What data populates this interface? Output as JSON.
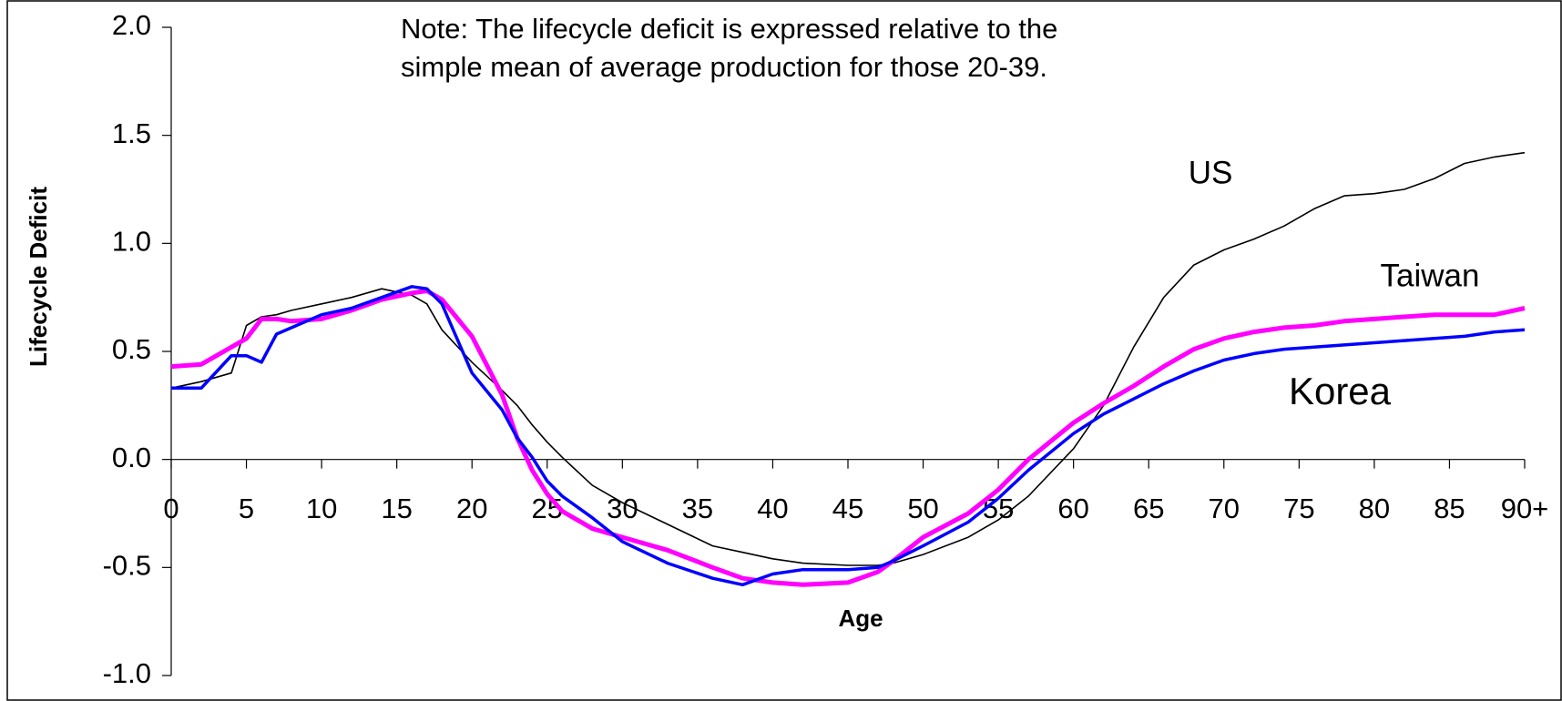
{
  "chart_data": {
    "type": "line",
    "note": [
      "Note: The lifecycle deficit is expressed relative to the",
      "simple mean of average production for those 20-39."
    ],
    "xlabel": "Age",
    "ylabel": "Lifecycle Deficit",
    "x": [
      0,
      2,
      4,
      5,
      6,
      7,
      8,
      10,
      12,
      14,
      16,
      17,
      18,
      20,
      22,
      23,
      24,
      25,
      26,
      28,
      30,
      33,
      36,
      38,
      40,
      42,
      45,
      47,
      48,
      50,
      53,
      55,
      57,
      60,
      62,
      64,
      66,
      68,
      70,
      72,
      74,
      76,
      78,
      80,
      82,
      84,
      86,
      88,
      90
    ],
    "series": [
      {
        "name": "US",
        "color": "#000000",
        "values": [
          0.33,
          0.36,
          0.4,
          0.62,
          0.66,
          0.67,
          0.69,
          0.72,
          0.75,
          0.79,
          0.76,
          0.72,
          0.6,
          0.45,
          0.32,
          0.25,
          0.16,
          0.08,
          0.01,
          -0.12,
          -0.2,
          -0.3,
          -0.4,
          -0.43,
          -0.46,
          -0.48,
          -0.49,
          -0.49,
          -0.48,
          -0.44,
          -0.36,
          -0.28,
          -0.17,
          0.05,
          0.25,
          0.52,
          0.75,
          0.9,
          0.97,
          1.02,
          1.08,
          1.16,
          1.22,
          1.23,
          1.25,
          1.3,
          1.37,
          1.4,
          1.42
        ]
      },
      {
        "name": "Taiwan",
        "color": "#FF00FF",
        "values": [
          0.43,
          0.44,
          0.52,
          0.56,
          0.65,
          0.65,
          0.64,
          0.65,
          0.69,
          0.74,
          0.77,
          0.78,
          0.74,
          0.57,
          0.3,
          0.1,
          -0.05,
          -0.16,
          -0.24,
          -0.32,
          -0.36,
          -0.42,
          -0.5,
          -0.55,
          -0.57,
          -0.58,
          -0.57,
          -0.52,
          -0.47,
          -0.36,
          -0.25,
          -0.14,
          0.0,
          0.17,
          0.26,
          0.34,
          0.43,
          0.51,
          0.56,
          0.59,
          0.61,
          0.62,
          0.64,
          0.65,
          0.66,
          0.67,
          0.67,
          0.67,
          0.7
        ]
      },
      {
        "name": "Korea",
        "color": "#0000FF",
        "values": [
          0.33,
          0.33,
          0.48,
          0.48,
          0.45,
          0.58,
          0.61,
          0.67,
          0.7,
          0.75,
          0.8,
          0.79,
          0.72,
          0.4,
          0.23,
          0.1,
          0.01,
          -0.1,
          -0.17,
          -0.27,
          -0.38,
          -0.48,
          -0.55,
          -0.58,
          -0.53,
          -0.51,
          -0.51,
          -0.5,
          -0.47,
          -0.4,
          -0.29,
          -0.18,
          -0.05,
          0.12,
          0.21,
          0.28,
          0.35,
          0.41,
          0.46,
          0.49,
          0.51,
          0.52,
          0.53,
          0.54,
          0.55,
          0.56,
          0.57,
          0.59,
          0.6
        ]
      }
    ],
    "xlim": [
      0,
      90
    ],
    "xticks": [
      0,
      5,
      10,
      15,
      20,
      25,
      30,
      35,
      40,
      45,
      50,
      55,
      60,
      65,
      70,
      75,
      80,
      85,
      {
        "value": 90,
        "label": "90+"
      }
    ],
    "ylim": [
      -1,
      2
    ],
    "yticks": [
      {
        "value": 2,
        "label": "2.0"
      },
      {
        "value": 1.5,
        "label": "1.5"
      },
      {
        "value": 1,
        "label": "1.0"
      },
      {
        "value": 0.5,
        "label": "0.5"
      },
      {
        "value": 0,
        "label": "0.0"
      },
      {
        "value": -0.5,
        "label": "-0.5"
      },
      {
        "value": -1,
        "label": "-1.0"
      }
    ]
  }
}
